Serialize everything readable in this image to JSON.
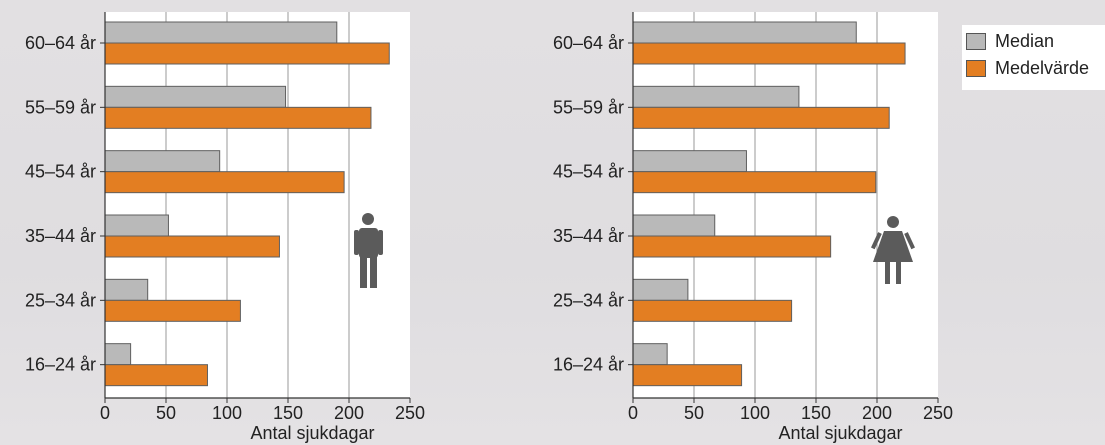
{
  "colors": {
    "median": "#b9b9b9",
    "mean": "#e37e22",
    "plot_bg": "#ffffff",
    "icon": "#5b5b5b"
  },
  "legend": {
    "items": [
      "Median",
      "Medelvärde"
    ]
  },
  "chart_data": [
    {
      "type": "bar",
      "orientation": "horizontal",
      "icon": "male-icon",
      "categories": [
        "60–64 år",
        "55–59 år",
        "45–54 år",
        "35–44 år",
        "25–34 år",
        "16–24 år"
      ],
      "series": [
        {
          "name": "Median",
          "values": [
            190,
            148,
            94,
            52,
            35,
            21
          ]
        },
        {
          "name": "Medelvärde",
          "values": [
            233,
            218,
            196,
            143,
            111,
            84
          ]
        }
      ],
      "xlabel": "Antal sjukdagar",
      "xlim": [
        0,
        250
      ],
      "xticks": [
        "0",
        "50",
        "100",
        "150",
        "200",
        "250"
      ],
      "grid": "vertical"
    },
    {
      "type": "bar",
      "orientation": "horizontal",
      "icon": "female-icon",
      "categories": [
        "60–64 år",
        "55–59 år",
        "45–54 år",
        "35–44 år",
        "25–34 år",
        "16–24 år"
      ],
      "series": [
        {
          "name": "Median",
          "values": [
            183,
            136,
            93,
            67,
            45,
            28
          ]
        },
        {
          "name": "Medelvärde",
          "values": [
            223,
            210,
            199,
            162,
            130,
            89
          ]
        }
      ],
      "xlabel": "Antal sjukdagar",
      "xlim": [
        0,
        250
      ],
      "xticks": [
        "0",
        "50",
        "100",
        "150",
        "200",
        "250"
      ],
      "grid": "vertical"
    }
  ]
}
